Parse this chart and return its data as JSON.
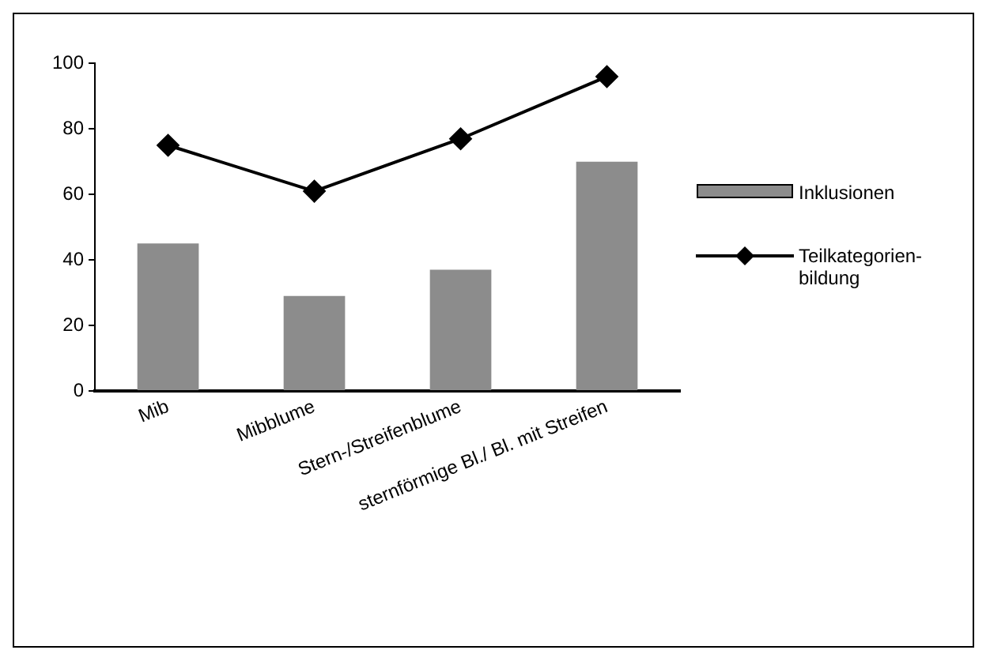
{
  "chart_data": {
    "type": "bar",
    "categories": [
      "Mib",
      "Mibblume",
      "Stern-/Streifenblume",
      "sternförmige Bl./ Bl. mit Streifen"
    ],
    "series": [
      {
        "name": "Inklusionen",
        "color": "#8c8c8c",
        "values": [
          45,
          29,
          37,
          70
        ]
      },
      {
        "name": "Teilkategorien-bildung",
        "type": "line",
        "color": "#000000",
        "values": [
          75,
          61,
          77,
          96
        ]
      }
    ],
    "ylim": [
      0,
      100
    ],
    "yticks": [
      0,
      20,
      40,
      60,
      80,
      100
    ],
    "grid": false,
    "legend": "right",
    "marker": "diamond",
    "line_style": "solid"
  }
}
